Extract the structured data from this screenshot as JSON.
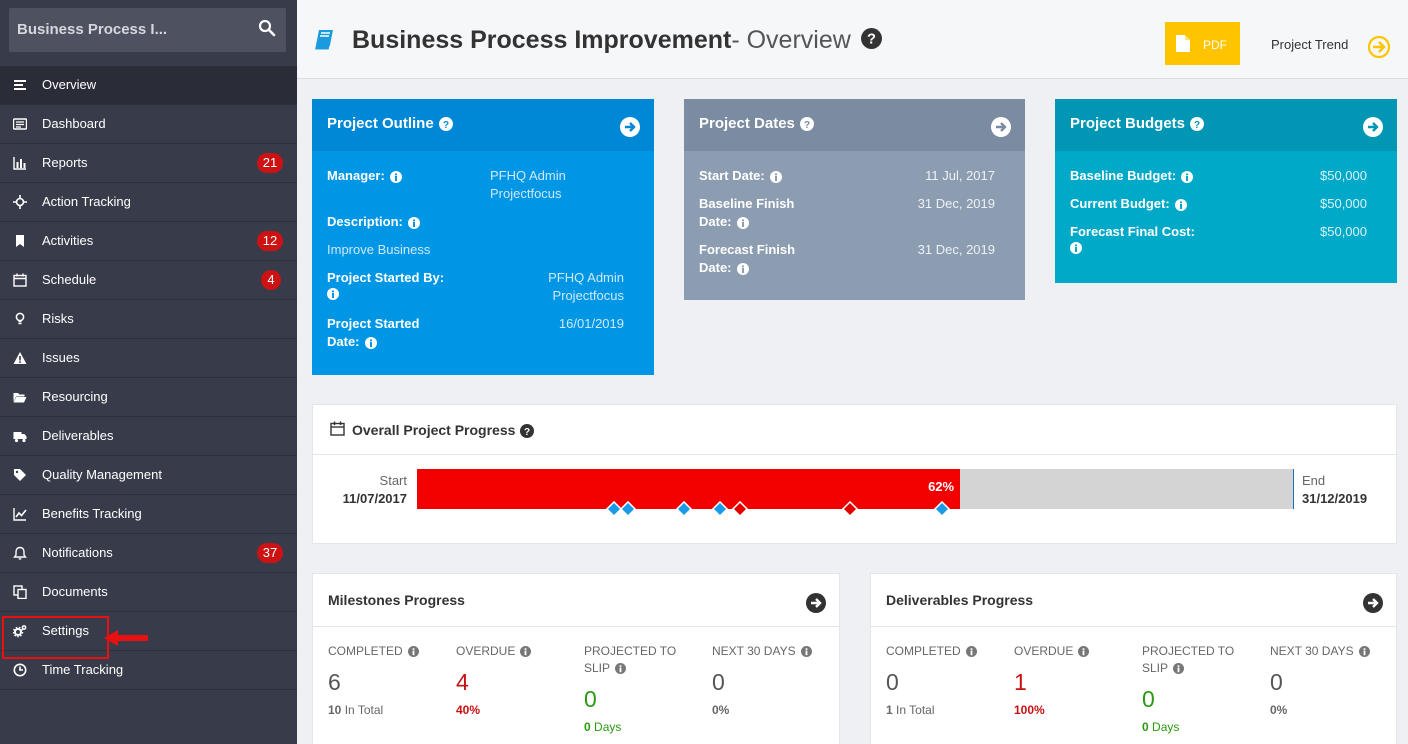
{
  "sidebar": {
    "search_text": "Business Process I...",
    "items": [
      {
        "label": "Overview",
        "icon": "overview-list-icon"
      },
      {
        "label": "Dashboard",
        "icon": "dashboard-icon"
      },
      {
        "label": "Reports",
        "icon": "bar-chart-icon",
        "badge": "21"
      },
      {
        "label": "Action Tracking",
        "icon": "crosshair-icon"
      },
      {
        "label": "Activities",
        "icon": "bookmark-icon",
        "badge": "12"
      },
      {
        "label": "Schedule",
        "icon": "calendar-icon",
        "badge": "4"
      },
      {
        "label": "Risks",
        "icon": "lightbulb-icon"
      },
      {
        "label": "Issues",
        "icon": "warning-icon"
      },
      {
        "label": "Resourcing",
        "icon": "folder-open-icon"
      },
      {
        "label": "Deliverables",
        "icon": "truck-icon"
      },
      {
        "label": "Quality Management",
        "icon": "tag-icon"
      },
      {
        "label": "Benefits Tracking",
        "icon": "line-chart-icon"
      },
      {
        "label": "Notifications",
        "icon": "bell-icon",
        "badge": "37"
      },
      {
        "label": "Documents",
        "icon": "documents-icon"
      },
      {
        "label": "Settings",
        "icon": "gears-icon"
      },
      {
        "label": "Time Tracking",
        "icon": "clock-icon"
      }
    ]
  },
  "header": {
    "title_bold": "Business Process Improvement",
    "title_rest": "- Overview",
    "pdf_label": "PDF",
    "trend_label": "Project Trend"
  },
  "outline": {
    "title": "Project Outline",
    "manager_label": "Manager:",
    "manager_value_1": "PFHQ Admin",
    "manager_value_2": "Projectfocus",
    "description_label": "Description:",
    "description_value": "Improve Business",
    "started_by_label": "Project Started By:",
    "started_by_value_1": "PFHQ Admin",
    "started_by_value_2": "Projectfocus",
    "started_date_label_1": "Project Started",
    "started_date_label_2": "Date:",
    "started_date_value": "16/01/2019"
  },
  "dates": {
    "title": "Project Dates",
    "start_label": "Start Date:",
    "start_value": "11 Jul, 2017",
    "baseline_label_1": "Baseline Finish",
    "baseline_label_2": "Date:",
    "baseline_value": "31 Dec, 2019",
    "forecast_label_1": "Forecast Finish",
    "forecast_label_2": "Date:",
    "forecast_value": "31 Dec, 2019"
  },
  "budgets": {
    "title": "Project Budgets",
    "baseline_label": "Baseline Budget:",
    "baseline_value": "$50,000",
    "current_label": "Current Budget:",
    "current_value": "$50,000",
    "forecast_label": "Forecast Final Cost:",
    "forecast_value": "$50,000"
  },
  "progress": {
    "title": "Overall Project Progress",
    "start_label": "Start",
    "start_date": "11/07/2017",
    "end_label": "End",
    "end_date": "31/12/2019",
    "percent_label": "62%",
    "percent": 62,
    "markers": [
      {
        "pos": 22.5,
        "color": "blue"
      },
      {
        "pos": 24.1,
        "color": "blue"
      },
      {
        "pos": 30.5,
        "color": "blue"
      },
      {
        "pos": 34.6,
        "color": "blue"
      },
      {
        "pos": 36.9,
        "color": "red"
      },
      {
        "pos": 49.4,
        "color": "red"
      },
      {
        "pos": 59.9,
        "color": "blue"
      }
    ]
  },
  "milestones": {
    "title": "Milestones Progress",
    "completed_label": "COMPLETED",
    "completed_value": "6",
    "completed_sub_bold": "10",
    "completed_sub": "In Total",
    "overdue_label": "OVERDUE",
    "overdue_value": "4",
    "overdue_sub": "40%",
    "slip_label_1": "PROJECTED TO",
    "slip_label_2": "SLIP",
    "slip_value": "0",
    "slip_sub_bold": "0",
    "slip_sub": "Days",
    "next_label": "NEXT 30 DAYS",
    "next_value": "0",
    "next_sub": "0%"
  },
  "deliverables": {
    "title": "Deliverables Progress",
    "completed_label": "COMPLETED",
    "completed_value": "0",
    "completed_sub_bold": "1",
    "completed_sub": "In Total",
    "overdue_label": "OVERDUE",
    "overdue_value": "1",
    "overdue_sub": "100%",
    "slip_label_1": "PROJECTED TO",
    "slip_label_2": "SLIP",
    "slip_value": "0",
    "slip_sub_bold": "0",
    "slip_sub": "Days",
    "next_label": "NEXT 30 DAYS",
    "next_value": "0",
    "next_sub": "0%"
  },
  "colors": {
    "outline_bg": "#0096e6",
    "outline_head": "#0087d6",
    "dates_bg": "#8c9db2",
    "dates_head": "#7a8ba2",
    "budgets_bg": "#00a9c8",
    "budgets_head": "#0096b4",
    "progress_red": "#f20000",
    "progress_grey": "#d4d4d4"
  }
}
